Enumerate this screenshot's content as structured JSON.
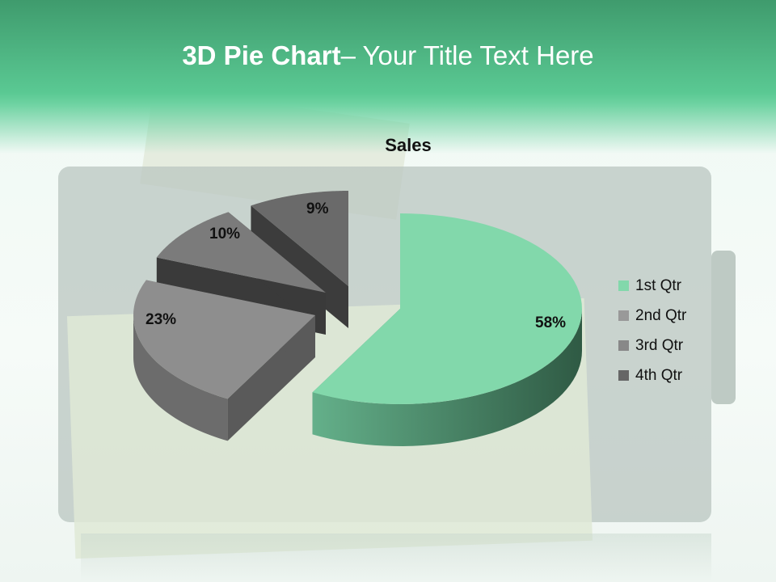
{
  "slide": {
    "title_bold": "3D Pie Chart",
    "title_rest": "– Your Title Text Here"
  },
  "colors": {
    "header_top": "#3f9b6d",
    "header_bottom": "#5ac993"
  },
  "chart_data": {
    "type": "pie",
    "style": "3d-exploded",
    "title": "Sales",
    "categories": [
      "1st Qtr",
      "2nd Qtr",
      "3rd Qtr",
      "4th Qtr"
    ],
    "values": [
      58,
      23,
      10,
      9
    ],
    "data_labels": [
      "58%",
      "23%",
      "10%",
      "9%"
    ],
    "colors": [
      "#82d8ab",
      "#999999",
      "#888888",
      "#666666"
    ],
    "legend_position": "right"
  }
}
